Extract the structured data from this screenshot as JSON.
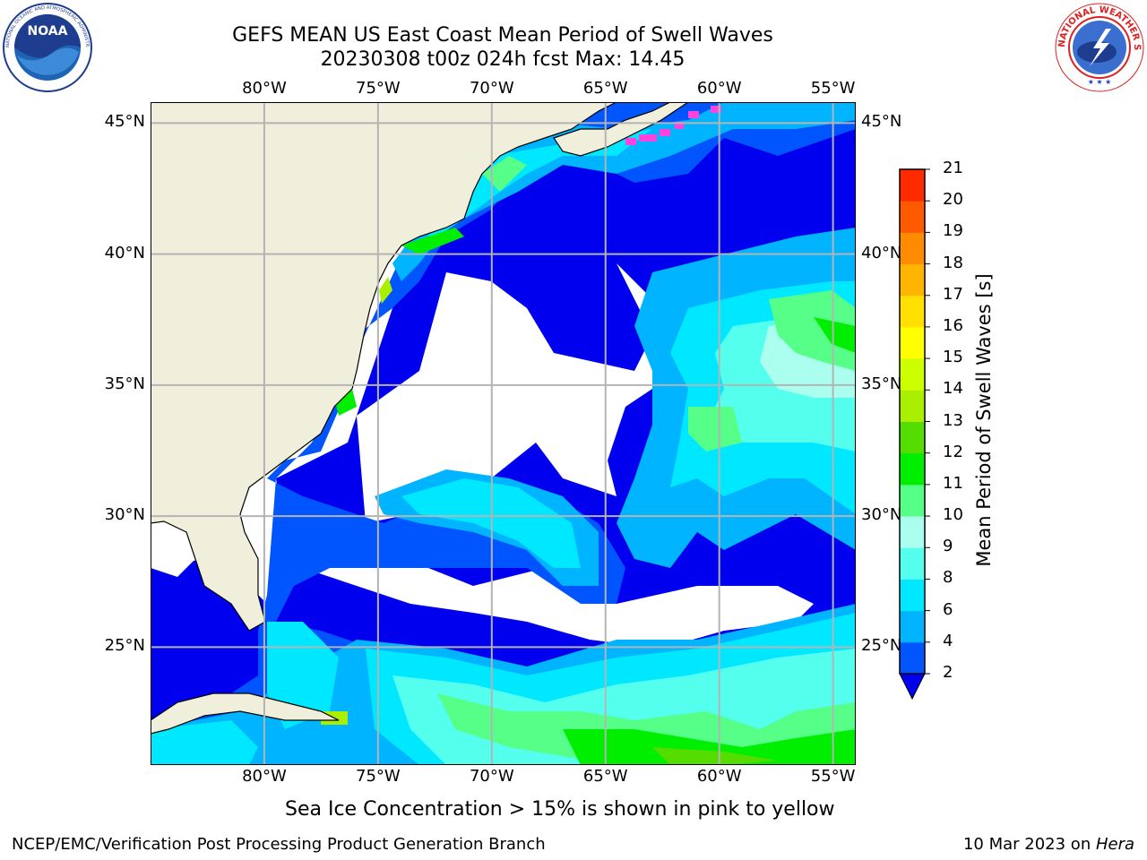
{
  "header": {
    "title": "GEFS MEAN US East Coast Mean Period of Swell Waves",
    "subtitle": "20230308 t00z 024h fcst   Max: 14.45"
  },
  "logos": {
    "left": {
      "name": "noaa-logo",
      "text": "NOAA",
      "ring_text": "NATIONAL OCEANIC AND ATMOSPHERIC ADMINISTRATION · U.S. DEPARTMENT OF COMMERCE"
    },
    "right": {
      "name": "nws-logo",
      "ring_text": "NATIONAL WEATHER SERVICE"
    }
  },
  "map": {
    "projection": "lat-lon",
    "lon_range": [
      -85,
      -54
    ],
    "lat_range": [
      20.5,
      45.8
    ],
    "lon_ticks": [
      -80,
      -75,
      -70,
      -65,
      -60,
      -55
    ],
    "lon_tick_labels": [
      "80°W",
      "75°W",
      "70°W",
      "65°W",
      "60°W",
      "55°W"
    ],
    "lat_ticks": [
      25,
      30,
      35,
      40,
      45
    ],
    "lat_tick_labels": [
      "25°N",
      "30°N",
      "35°N",
      "40°N",
      "45°N"
    ],
    "grid": true
  },
  "colorbar": {
    "label": "Mean Period of Swell Waves [s]",
    "levels": [
      2,
      4,
      6,
      8,
      9,
      10,
      11,
      12,
      13,
      14,
      15,
      16,
      17,
      18,
      19,
      20,
      21
    ],
    "level_labels": [
      "2",
      "4",
      "6",
      "8",
      "9",
      "10",
      "11",
      "12",
      "13",
      "14",
      "15",
      "16",
      "17",
      "18",
      "19",
      "20",
      "21"
    ],
    "colors": [
      "#0055ff",
      "#00b4ff",
      "#00e8ff",
      "#55ffee",
      "#aaffee",
      "#55ff88",
      "#00ee00",
      "#55dd00",
      "#aaee00",
      "#ccff00",
      "#ffff00",
      "#ffe000",
      "#ffb400",
      "#ff8c00",
      "#ff5a00",
      "#ff2a00"
    ],
    "under_color": "#0000ee",
    "extend": "min"
  },
  "colors": {
    "land": "#efefdc",
    "no_data": "#ffffff",
    "grid": "#b4b4b4",
    "sea_ice": "#ff44dd"
  },
  "footer": {
    "note": "Sea Ice Concentration > 15% is shown in pink to yellow",
    "left": "NCEP/EMC/Verification Post Processing Product Generation Branch",
    "right_date": "10 Mar 2023 on ",
    "right_host": "Hera"
  }
}
